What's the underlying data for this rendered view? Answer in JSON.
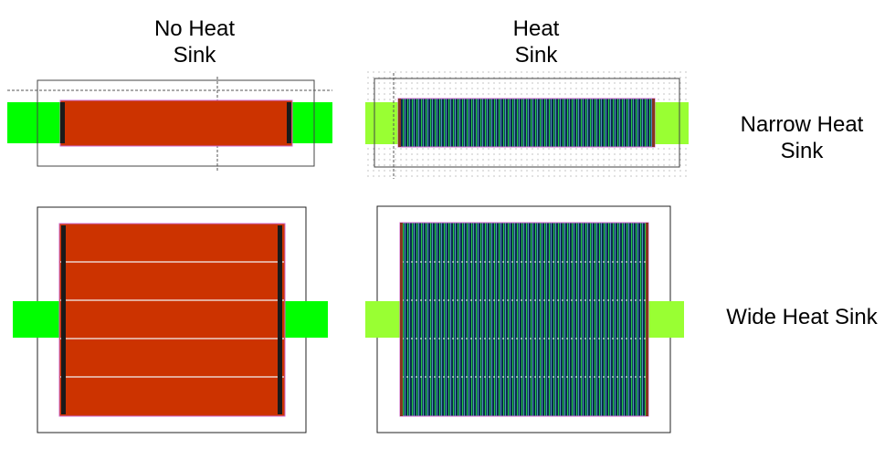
{
  "labels": {
    "no_heat_sink": "No Heat\nSink",
    "heat_sink": "Heat\nSink",
    "narrow_heat_sink": "Narrow Heat\nSink",
    "wide_heat_sink": "Wide Heat Sink"
  },
  "colors": {
    "device": "#cc3300",
    "contact": "#00ff00",
    "contact_light": "#99ff33",
    "heatsink_fill": "#0a2a50",
    "heatsink_line": "#22cc44",
    "outline": "#333333",
    "gate": "#1a1a1a",
    "boundary": "#cc66cc"
  }
}
